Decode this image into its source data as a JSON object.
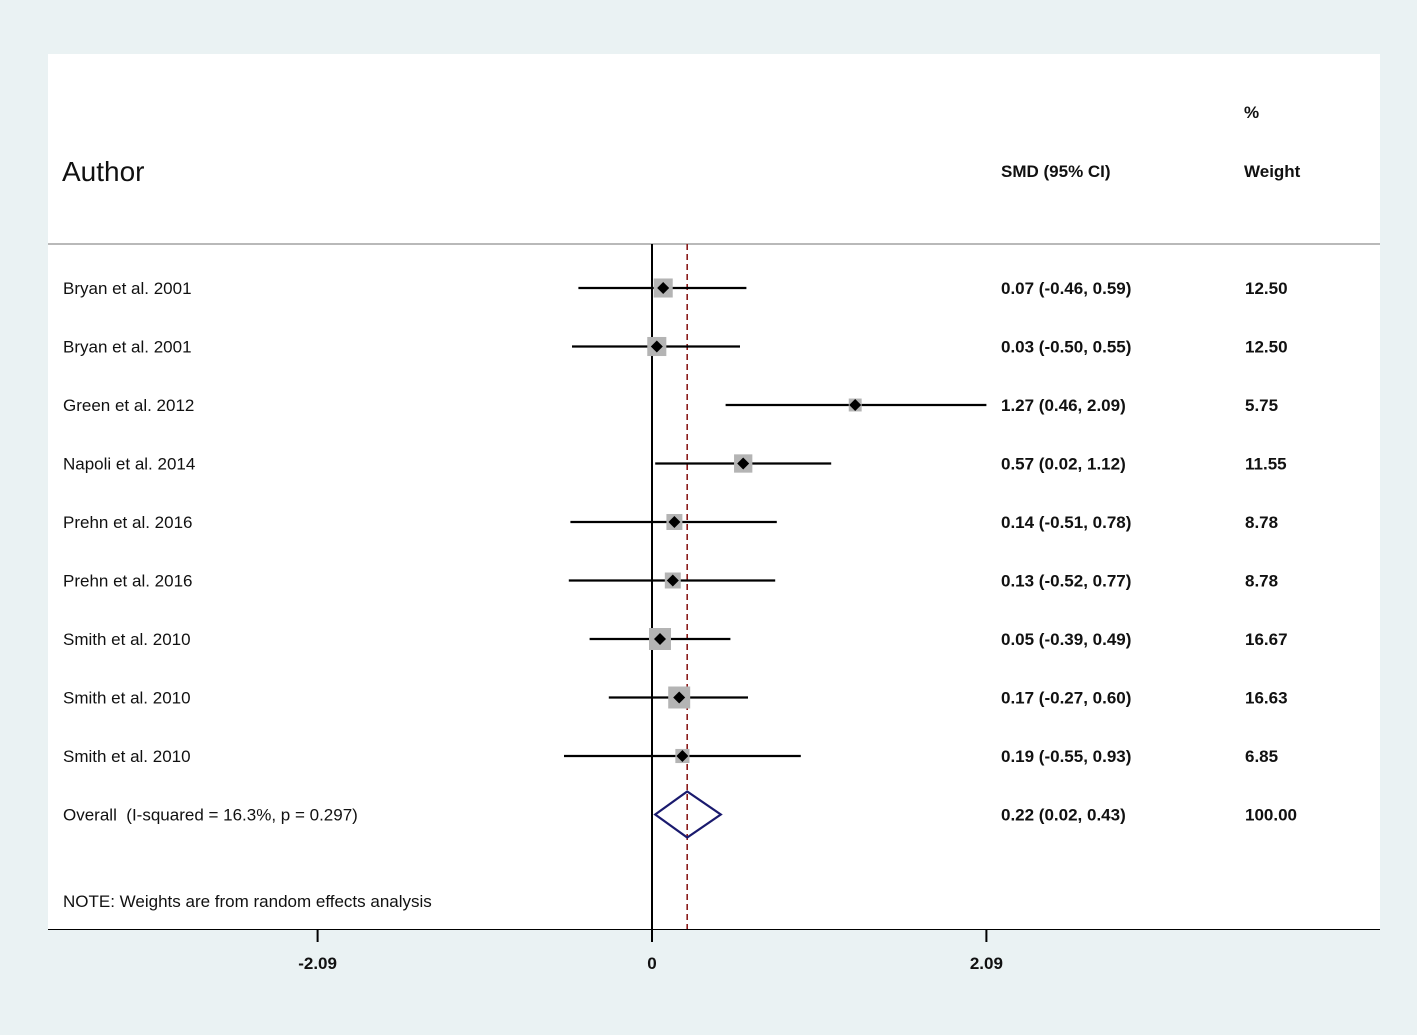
{
  "chart_data": {
    "type": "forest",
    "headers": {
      "author": "Author",
      "effect": "SMD (95% CI)",
      "weight_line1": "%",
      "weight_line2": "Weight"
    },
    "studies": [
      {
        "author": "Bryan et al. 2001",
        "smd": 0.07,
        "lo": -0.46,
        "hi": 0.59,
        "ci_text": "0.07 (-0.46, 0.59)",
        "weight": 12.5,
        "weight_text": "12.50"
      },
      {
        "author": "Bryan et al. 2001",
        "smd": 0.03,
        "lo": -0.5,
        "hi": 0.55,
        "ci_text": "0.03 (-0.50, 0.55)",
        "weight": 12.5,
        "weight_text": "12.50"
      },
      {
        "author": "Green et al. 2012",
        "smd": 1.27,
        "lo": 0.46,
        "hi": 2.09,
        "ci_text": "1.27 (0.46, 2.09)",
        "weight": 5.75,
        "weight_text": "5.75"
      },
      {
        "author": "Napoli et al. 2014",
        "smd": 0.57,
        "lo": 0.02,
        "hi": 1.12,
        "ci_text": "0.57 (0.02, 1.12)",
        "weight": 11.55,
        "weight_text": "11.55"
      },
      {
        "author": "Prehn et al. 2016",
        "smd": 0.14,
        "lo": -0.51,
        "hi": 0.78,
        "ci_text": "0.14 (-0.51, 0.78)",
        "weight": 8.78,
        "weight_text": "8.78"
      },
      {
        "author": "Prehn et al. 2016",
        "smd": 0.13,
        "lo": -0.52,
        "hi": 0.77,
        "ci_text": "0.13 (-0.52, 0.77)",
        "weight": 8.78,
        "weight_text": "8.78"
      },
      {
        "author": "Smith et al. 2010",
        "smd": 0.05,
        "lo": -0.39,
        "hi": 0.49,
        "ci_text": "0.05 (-0.39, 0.49)",
        "weight": 16.67,
        "weight_text": "16.67"
      },
      {
        "author": "Smith et al. 2010",
        "smd": 0.17,
        "lo": -0.27,
        "hi": 0.6,
        "ci_text": "0.17 (-0.27, 0.60)",
        "weight": 16.63,
        "weight_text": "16.63"
      },
      {
        "author": "Smith et al. 2010",
        "smd": 0.19,
        "lo": -0.55,
        "hi": 0.93,
        "ci_text": "0.19 (-0.55, 0.93)",
        "weight": 6.85,
        "weight_text": "6.85"
      }
    ],
    "overall": {
      "label": "Overall  (I-squared = 16.3%, p = 0.297)",
      "smd": 0.22,
      "lo": 0.02,
      "hi": 0.43,
      "ci_text": "0.22 (0.02, 0.43)",
      "weight_text": "100.00"
    },
    "note": "NOTE: Weights are from random effects analysis",
    "xaxis": {
      "ticks": [
        -2.09,
        0,
        2.09
      ],
      "tick_labels": [
        "-2.09",
        "0",
        "2.09"
      ]
    },
    "colors": {
      "page_bg": "#eaf2f3",
      "panel_bg": "#ffffff",
      "weight_box": "#b4b4b4",
      "point": "#000000",
      "ci_line": "#000000",
      "null_line": "#000000",
      "overall_line": "#8b1a1a",
      "diamond": "#1a1a6e",
      "divider": "#b9b9b9"
    }
  }
}
